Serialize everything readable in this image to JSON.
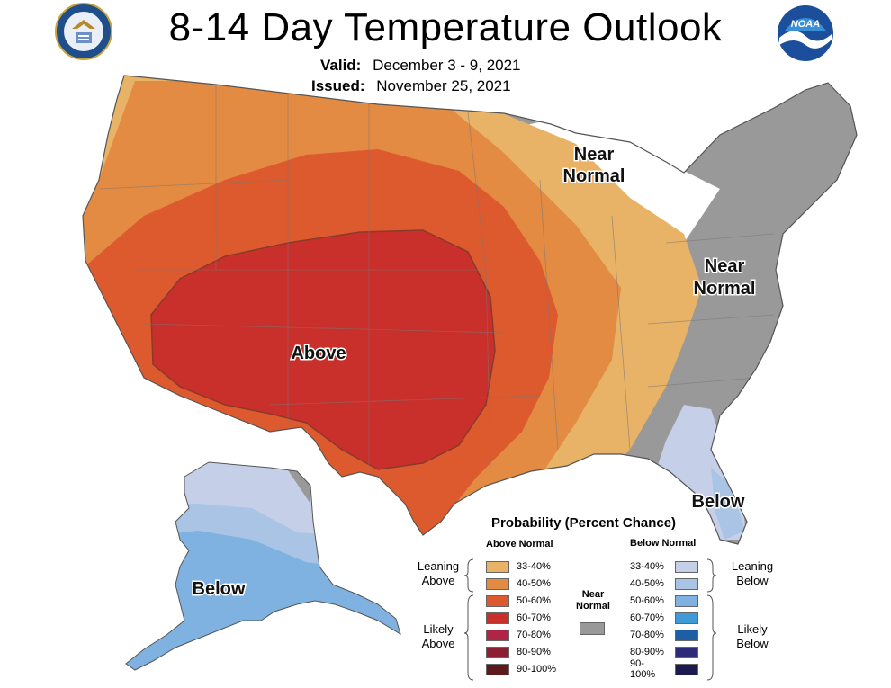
{
  "header": {
    "title": "8-14 Day Temperature Outlook",
    "valid_label": "Valid:",
    "valid_value": "December 3 - 9, 2021",
    "issued_label": "Issued:",
    "issued_value": "November 25, 2021"
  },
  "logos": {
    "left_seal": "department-of-commerce-seal",
    "right_logo_text": "NOAA"
  },
  "map": {
    "labels": {
      "near_normal_line1": "Near",
      "near_normal_line2": "Normal",
      "above": "Above",
      "below_se": "Below",
      "below_ak": "Below"
    }
  },
  "legend": {
    "title": "Probability (Percent Chance)",
    "above_header": "Above Normal",
    "below_header": "Below Normal",
    "near_label_line1": "Near",
    "near_label_line2": "Normal",
    "leaning_above_line1": "Leaning",
    "leaning_above_line2": "Above",
    "likely_above_line1": "Likely",
    "likely_above_line2": "Above",
    "leaning_below_line1": "Leaning",
    "leaning_below_line2": "Below",
    "likely_below_line1": "Likely",
    "likely_below_line2": "Below",
    "above_rows": [
      {
        "range": "33-40%",
        "color": "#e8b267"
      },
      {
        "range": "40-50%",
        "color": "#e38a43"
      },
      {
        "range": "50-60%",
        "color": "#dd5a2e"
      },
      {
        "range": "60-70%",
        "color": "#c9302c"
      },
      {
        "range": "70-80%",
        "color": "#b02545"
      },
      {
        "range": "80-90%",
        "color": "#8c1f32"
      },
      {
        "range": "90-100%",
        "color": "#5c1a1c"
      }
    ],
    "below_rows": [
      {
        "range": "33-40%",
        "color": "#c6cfe8"
      },
      {
        "range": "40-50%",
        "color": "#a9c4e4"
      },
      {
        "range": "50-60%",
        "color": "#7fb2e0"
      },
      {
        "range": "60-70%",
        "color": "#3f9ad8"
      },
      {
        "range": "70-80%",
        "color": "#1d5fa6"
      },
      {
        "range": "80-90%",
        "color": "#2d2a7a"
      },
      {
        "range": "90-100%",
        "color": "#1d1a4f"
      }
    ],
    "near_color": "#999999"
  }
}
